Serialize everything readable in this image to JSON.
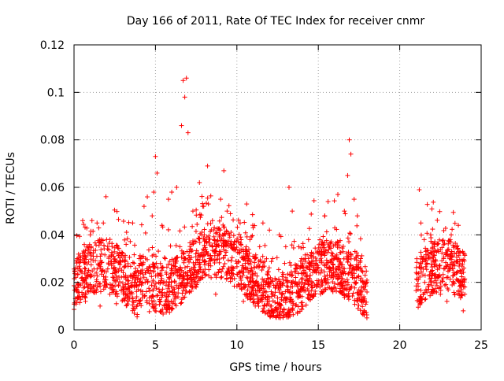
{
  "chart_data": {
    "type": "scatter",
    "title": "Day 166 of 2011, Rate Of TEC Index for receiver cnmr",
    "xlabel": "GPS time / hours",
    "ylabel": "ROTI / TECUs",
    "xlim": [
      0,
      25
    ],
    "ylim": [
      0,
      0.12
    ],
    "x_ticks": [
      0,
      5,
      10,
      15,
      20,
      25
    ],
    "x_tick_labels": [
      "0",
      "5",
      "10",
      "15",
      "20",
      "25"
    ],
    "y_ticks": [
      0,
      0.02,
      0.04,
      0.06,
      0.08,
      0.1,
      0.12
    ],
    "y_tick_labels": [
      "0",
      "0.02",
      "0.04",
      "0.06",
      "0.08",
      "0.1",
      "0.12"
    ],
    "grid": true,
    "legend": "none",
    "marker": "+",
    "color": "#ff0000",
    "data_gap_hours": [
      18.0,
      21.0
    ],
    "series": [
      {
        "points": [
          [
            0.1,
            0.018
          ],
          [
            0.2,
            0.03
          ],
          [
            0.3,
            0.014
          ],
          [
            0.5,
            0.022
          ],
          [
            0.7,
            0.012
          ],
          [
            0.9,
            0.025
          ],
          [
            1.0,
            0.04
          ],
          [
            1.1,
            0.046
          ],
          [
            1.2,
            0.016
          ],
          [
            1.4,
            0.031
          ],
          [
            1.6,
            0.01
          ],
          [
            1.8,
            0.045
          ],
          [
            1.9,
            0.02
          ],
          [
            2.0,
            0.038
          ],
          [
            2.2,
            0.015
          ],
          [
            2.4,
            0.028
          ],
          [
            2.6,
            0.011
          ],
          [
            2.8,
            0.032
          ],
          [
            3.0,
            0.018
          ],
          [
            3.2,
            0.036
          ],
          [
            3.4,
            0.013
          ],
          [
            3.6,
            0.045
          ],
          [
            3.8,
            0.022
          ],
          [
            4.0,
            0.03
          ],
          [
            4.2,
            0.015
          ],
          [
            4.3,
            0.052
          ],
          [
            4.5,
            0.056
          ],
          [
            4.7,
            0.025
          ],
          [
            4.8,
            0.048
          ],
          [
            4.9,
            0.058
          ],
          [
            5.0,
            0.073
          ],
          [
            5.1,
            0.066
          ],
          [
            5.2,
            0.02
          ],
          [
            5.4,
            0.044
          ],
          [
            5.6,
            0.03
          ],
          [
            5.8,
            0.055
          ],
          [
            6.0,
            0.058
          ],
          [
            6.1,
            0.012
          ],
          [
            6.3,
            0.06
          ],
          [
            6.5,
            0.035
          ],
          [
            6.6,
            0.086
          ],
          [
            6.7,
            0.105
          ],
          [
            6.8,
            0.098
          ],
          [
            6.9,
            0.106
          ],
          [
            7.0,
            0.083
          ],
          [
            7.1,
            0.025
          ],
          [
            7.3,
            0.05
          ],
          [
            7.5,
            0.018
          ],
          [
            7.7,
            0.062
          ],
          [
            7.9,
            0.052
          ],
          [
            8.0,
            0.04
          ],
          [
            8.2,
            0.069
          ],
          [
            8.3,
            0.03
          ],
          [
            8.5,
            0.046
          ],
          [
            8.7,
            0.015
          ],
          [
            9.0,
            0.055
          ],
          [
            9.2,
            0.067
          ],
          [
            9.4,
            0.05
          ],
          [
            9.6,
            0.022
          ],
          [
            9.8,
            0.036
          ],
          [
            10.0,
            0.028
          ],
          [
            10.2,
            0.045
          ],
          [
            10.4,
            0.012
          ],
          [
            10.6,
            0.053
          ],
          [
            10.8,
            0.038
          ],
          [
            11.0,
            0.043
          ],
          [
            11.2,
            0.02
          ],
          [
            11.4,
            0.035
          ],
          [
            11.6,
            0.045
          ],
          [
            11.8,
            0.016
          ],
          [
            12.0,
            0.042
          ],
          [
            12.2,
            0.03
          ],
          [
            12.4,
            0.018
          ],
          [
            12.6,
            0.04
          ],
          [
            12.8,
            0.024
          ],
          [
            13.0,
            0.035
          ],
          [
            13.2,
            0.06
          ],
          [
            13.4,
            0.05
          ],
          [
            13.6,
            0.02
          ],
          [
            13.8,
            0.035
          ],
          [
            14.0,
            0.014
          ],
          [
            14.2,
            0.03
          ],
          [
            14.4,
            0.038
          ],
          [
            14.6,
            0.018
          ],
          [
            14.8,
            0.028
          ],
          [
            15.0,
            0.032
          ],
          [
            15.2,
            0.016
          ],
          [
            15.4,
            0.048
          ],
          [
            15.6,
            0.054
          ],
          [
            15.8,
            0.025
          ],
          [
            16.0,
            0.03
          ],
          [
            16.2,
            0.057
          ],
          [
            16.4,
            0.02
          ],
          [
            16.6,
            0.05
          ],
          [
            16.8,
            0.065
          ],
          [
            16.9,
            0.08
          ],
          [
            17.0,
            0.074
          ],
          [
            17.2,
            0.055
          ],
          [
            17.4,
            0.048
          ],
          [
            17.6,
            0.03
          ],
          [
            17.8,
            0.02
          ],
          [
            21.2,
            0.059
          ],
          [
            21.3,
            0.045
          ],
          [
            21.5,
            0.038
          ],
          [
            21.7,
            0.028
          ],
          [
            21.9,
            0.04
          ],
          [
            22.1,
            0.02
          ],
          [
            22.3,
            0.036
          ],
          [
            22.5,
            0.015
          ],
          [
            22.7,
            0.03
          ],
          [
            22.9,
            0.012
          ],
          [
            23.1,
            0.038
          ],
          [
            23.3,
            0.02
          ],
          [
            23.5,
            0.035
          ],
          [
            23.7,
            0.025
          ],
          [
            23.9,
            0.008
          ]
        ]
      }
    ]
  }
}
